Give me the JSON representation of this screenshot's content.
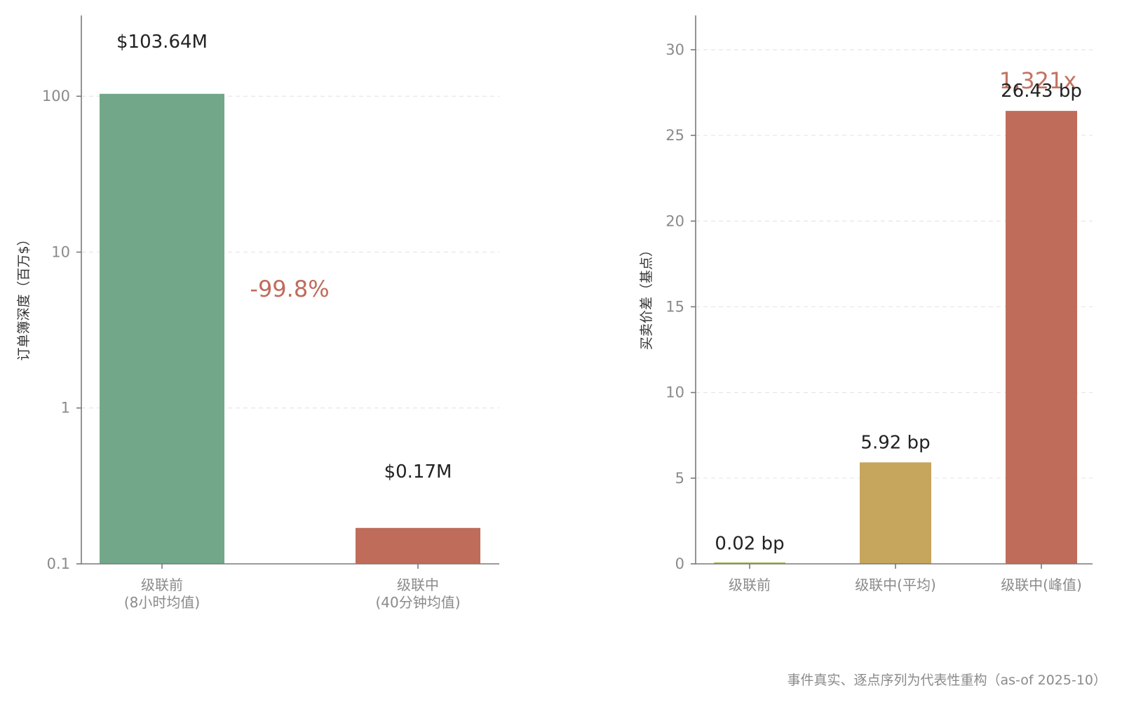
{
  "chart_data": [
    {
      "type": "bar",
      "yscale": "log",
      "ylabel": "订单簿深度（百万$）",
      "ylim": [
        0.1,
        330
      ],
      "yticks": [
        0.1,
        1,
        10,
        100
      ],
      "ytick_labels": [
        "0.1",
        "1",
        "10",
        "100"
      ],
      "grid": true,
      "categories": [
        {
          "line1": "级联前",
          "line2": "(8小时均值)"
        },
        {
          "line1": "级联中",
          "line2": "(40分钟均值)"
        }
      ],
      "values": [
        103.64,
        0.17
      ],
      "value_labels": [
        "$103.64M",
        "$0.17M"
      ],
      "colors": [
        "#72a789",
        "#bf6c5b"
      ],
      "annotation": {
        "text": "-99.8%",
        "color": "#bf6c5b"
      }
    },
    {
      "type": "bar",
      "yscale": "linear",
      "ylabel": "买卖价差（基点）",
      "ylim": [
        0,
        32
      ],
      "yticks": [
        0,
        5,
        10,
        15,
        20,
        25,
        30
      ],
      "ytick_labels": [
        "0",
        "5",
        "10",
        "15",
        "20",
        "25",
        "30"
      ],
      "grid": true,
      "categories": [
        {
          "line1": "级联前",
          "line2": ""
        },
        {
          "line1": "级联中(平均)",
          "line2": ""
        },
        {
          "line1": "级联中(峰值)",
          "line2": ""
        }
      ],
      "values": [
        0.02,
        5.92,
        26.43
      ],
      "value_labels": [
        "0.02 bp",
        "5.92 bp",
        "26.43 bp"
      ],
      "colors": [
        "#a9b84f",
        "#c6a55c",
        "#bf6c5b"
      ],
      "annotation": {
        "text": "1,321x",
        "color": "#bf6c5b"
      }
    }
  ],
  "footer": "事件真实、逐点序列为代表性重构（as-of 2025-10）"
}
